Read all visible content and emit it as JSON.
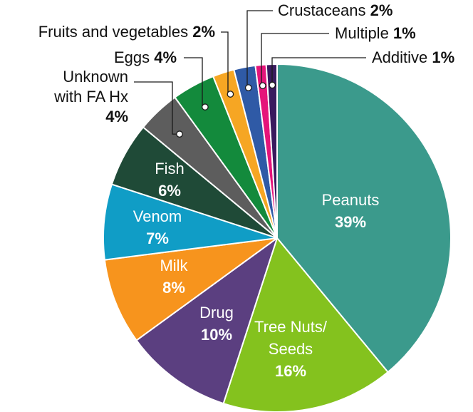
{
  "chart_data": {
    "type": "pie",
    "slices": [
      {
        "label": "Peanuts",
        "value": 39,
        "display": "39%",
        "color": "#3b9a8c"
      },
      {
        "label": "Tree Nuts/ Seeds",
        "value": 16,
        "display": "16%",
        "color": "#84c21e"
      },
      {
        "label": "Drug",
        "value": 10,
        "display": "10%",
        "color": "#5b3f80"
      },
      {
        "label": "Milk",
        "value": 8,
        "display": "8%",
        "color": "#f7941d"
      },
      {
        "label": "Venom",
        "value": 7,
        "display": "7%",
        "color": "#109dc6"
      },
      {
        "label": "Fish",
        "value": 6,
        "display": "6%",
        "color": "#1f4a37"
      },
      {
        "label": "Unknown with FA Hx",
        "value": 4,
        "display": "4%",
        "color": "#5d5d5d"
      },
      {
        "label": "Eggs",
        "value": 4,
        "display": "4%",
        "color": "#138a3c"
      },
      {
        "label": "Fruits and vegetables",
        "value": 2,
        "display": "2%",
        "color": "#f6a623"
      },
      {
        "label": "Crustaceans",
        "value": 2,
        "display": "2%",
        "color": "#2f5aa6"
      },
      {
        "label": "Multiple",
        "value": 1,
        "display": "1%",
        "color": "#e5147a"
      },
      {
        "label": "Additive",
        "value": 1,
        "display": "1%",
        "color": "#3a1a5e"
      }
    ]
  }
}
